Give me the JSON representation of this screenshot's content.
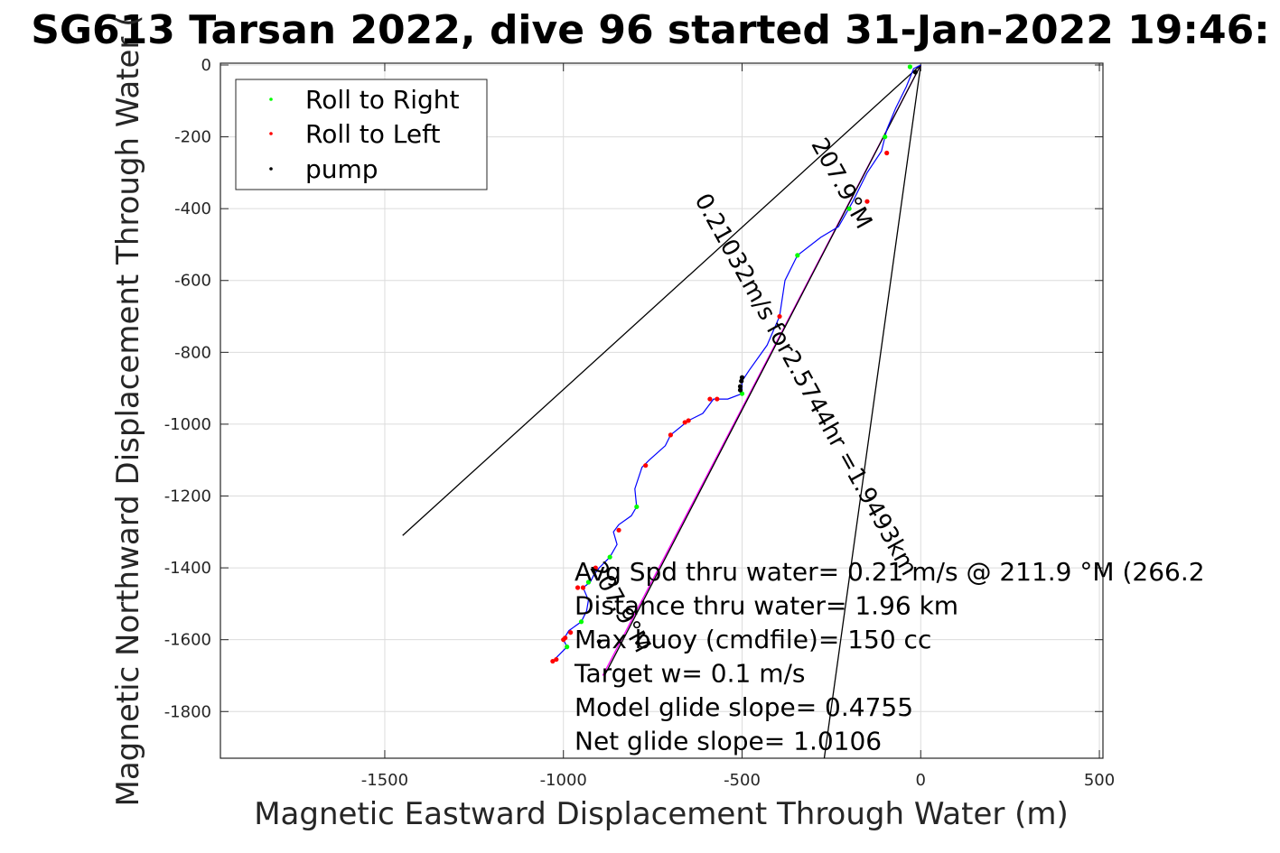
{
  "chart_data": {
    "type": "line",
    "title": "SG613 Tarsan 2022, dive 96 started 31-Jan-2022 19:46:",
    "xlabel": "Magnetic Eastward Displacement Through Water (m)",
    "ylabel": "Magnetic Northward Displacement Through Water (",
    "xlim": [
      -1960,
      510
    ],
    "ylim": [
      -1930,
      5
    ],
    "x_ticks": [
      -1500,
      -1000,
      -500,
      0,
      500
    ],
    "y_ticks": [
      0,
      -200,
      -400,
      -600,
      -800,
      -1000,
      -1200,
      -1400,
      -1600,
      -1800
    ],
    "grid": true,
    "legend": {
      "placement": "top-left",
      "entries": [
        {
          "label": "Roll to Right",
          "color": "#00ff00"
        },
        {
          "label": "Roll to Left",
          "color": "#ff0000"
        },
        {
          "label": "pump",
          "color": "#000000"
        }
      ]
    },
    "track": {
      "name": "track",
      "color": "#0000ff",
      "points": [
        [
          0,
          0
        ],
        [
          -20,
          -10
        ],
        [
          -40,
          -60
        ],
        [
          -70,
          -120
        ],
        [
          -95,
          -180
        ],
        [
          -110,
          -240
        ],
        [
          -150,
          -300
        ],
        [
          -190,
          -380
        ],
        [
          -230,
          -450
        ],
        [
          -280,
          -480
        ],
        [
          -345,
          -530
        ],
        [
          -380,
          -600
        ],
        [
          -395,
          -700
        ],
        [
          -430,
          -780
        ],
        [
          -480,
          -850
        ],
        [
          -500,
          -880
        ],
        [
          -500,
          -915
        ],
        [
          -540,
          -930
        ],
        [
          -580,
          -930
        ],
        [
          -610,
          -970
        ],
        [
          -650,
          -990
        ],
        [
          -700,
          -1030
        ],
        [
          -715,
          -1060
        ],
        [
          -760,
          -1100
        ],
        [
          -780,
          -1120
        ],
        [
          -800,
          -1180
        ],
        [
          -795,
          -1230
        ],
        [
          -810,
          -1255
        ],
        [
          -845,
          -1280
        ],
        [
          -860,
          -1300
        ],
        [
          -850,
          -1335
        ],
        [
          -870,
          -1370
        ],
        [
          -900,
          -1400
        ],
        [
          -915,
          -1420
        ],
        [
          -925,
          -1440
        ],
        [
          -945,
          -1455
        ],
        [
          -930,
          -1490
        ],
        [
          -935,
          -1520
        ],
        [
          -950,
          -1550
        ],
        [
          -985,
          -1575
        ],
        [
          -1000,
          -1600
        ],
        [
          -990,
          -1620
        ],
        [
          -1010,
          -1640
        ],
        [
          -1030,
          -1660
        ]
      ]
    },
    "roll_right_points": [
      [
        -30,
        -5
      ],
      [
        -100,
        -200
      ],
      [
        -200,
        -400
      ],
      [
        -345,
        -530
      ],
      [
        -500,
        -915
      ],
      [
        -795,
        -1230
      ],
      [
        -870,
        -1370
      ],
      [
        -930,
        -1440
      ],
      [
        -950,
        -1550
      ],
      [
        -990,
        -1620
      ]
    ],
    "roll_left_points": [
      [
        -95,
        -245
      ],
      [
        -150,
        -380
      ],
      [
        -395,
        -700
      ],
      [
        -570,
        -930
      ],
      [
        -590,
        -930
      ],
      [
        -650,
        -990
      ],
      [
        -660,
        -995
      ],
      [
        -700,
        -1030
      ],
      [
        -770,
        -1115
      ],
      [
        -845,
        -1295
      ],
      [
        -910,
        -1400
      ],
      [
        -945,
        -1455
      ],
      [
        -960,
        -1455
      ],
      [
        -980,
        -1580
      ],
      [
        -995,
        -1595
      ],
      [
        -1000,
        -1600
      ],
      [
        -1020,
        -1655
      ],
      [
        -1030,
        -1660
      ]
    ],
    "pump_points": [
      [
        -15,
        -20
      ],
      [
        -500,
        -870
      ],
      [
        -502,
        -880
      ],
      [
        -505,
        -895
      ],
      [
        -505,
        -905
      ],
      [
        -900,
        -1605
      ]
    ],
    "lines": [
      {
        "name": "heading-line-a",
        "color": "#000000",
        "x": [
          0,
          -1450
        ],
        "y": [
          0,
          -1310
        ]
      },
      {
        "name": "heading-line-b",
        "color": "#000000",
        "x": [
          0,
          -270
        ],
        "y": [
          0,
          -1930
        ]
      },
      {
        "name": "net-line",
        "color": "#ff00ff",
        "x": [
          0,
          -890
        ],
        "y": [
          0,
          -1700
        ]
      },
      {
        "name": "slope-line",
        "color": "#000000",
        "x": [
          0,
          -885
        ],
        "y": [
          0,
          -1700
        ]
      }
    ],
    "slanted_annotations": [
      {
        "text": "0.21032m/s for2.5744hr =1.9493km",
        "x": -340,
        "y": -900,
        "rotate": 61
      },
      {
        "text": "207.9°M",
        "x": -240,
        "y": -340,
        "rotate": 61
      },
      {
        "text": "207.9°M",
        "x": -860,
        "y": -1520,
        "rotate": 61
      }
    ],
    "annotations": [
      "Avg Spd thru water=  0.21 m/s @ 211.9 °M (266.2",
      "Distance thru water=  1.96 km",
      "Max buoy (cmdfile)= 150 cc",
      "Target w= 0.1 m/s",
      "Model glide slope= 0.4755",
      "Net glide slope= 1.0106"
    ]
  }
}
